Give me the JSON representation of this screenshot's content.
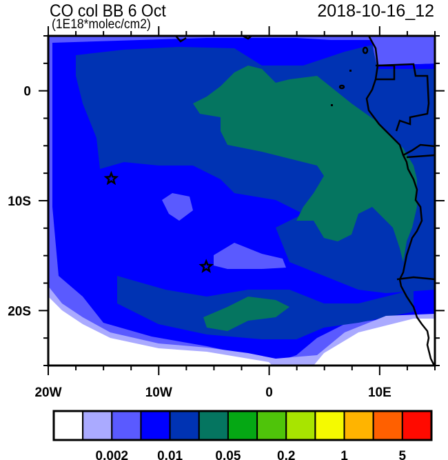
{
  "title": "CO col BB 6 Oct",
  "units": "(1E18*molec/cm2)",
  "valid_time": "2018-10-16_12",
  "map": {
    "lon_range": [
      -20,
      15
    ],
    "lat_range": [
      -25,
      5
    ],
    "x_ticks": [
      {
        "value": -20,
        "label": "20W"
      },
      {
        "value": -10,
        "label": "10W"
      },
      {
        "value": 0,
        "label": "0"
      },
      {
        "value": 10,
        "label": "10E"
      }
    ],
    "y_ticks": [
      {
        "value": 0,
        "label": "0"
      },
      {
        "value": -10,
        "label": "10S"
      },
      {
        "value": -20,
        "label": "20S"
      }
    ],
    "markers": [
      {
        "type": "star",
        "lon": -14.3,
        "lat": -8.0
      },
      {
        "type": "star",
        "lon": -5.7,
        "lat": -16.0
      }
    ]
  },
  "colorbar": {
    "colors": [
      "#ffffff",
      "#aaaaff",
      "#5a5aff",
      "#0000ff",
      "#0033b3",
      "#057560",
      "#05a814",
      "#4fc40a",
      "#a8e400",
      "#f5fa00",
      "#ffb400",
      "#ff6000",
      "#ff0a00"
    ],
    "labels": [
      {
        "after_box": 2,
        "text": "0.002"
      },
      {
        "after_box": 4,
        "text": "0.01"
      },
      {
        "after_box": 6,
        "text": "0.05"
      },
      {
        "after_box": 8,
        "text": "0.2"
      },
      {
        "after_box": 10,
        "text": "1"
      },
      {
        "after_box": 12,
        "text": "5"
      }
    ]
  }
}
